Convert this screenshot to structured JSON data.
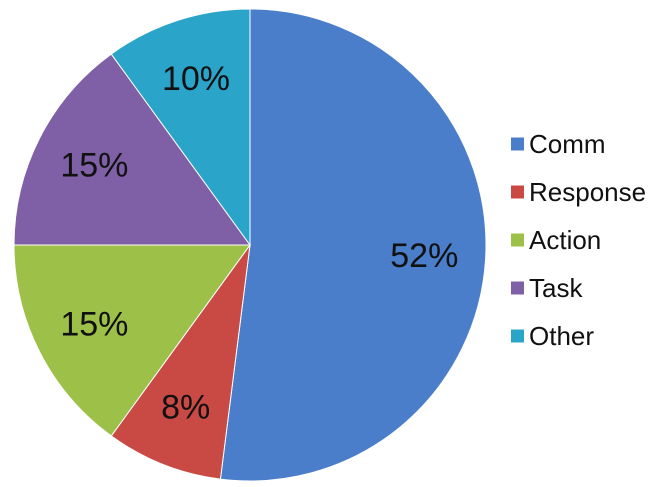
{
  "chart_data": {
    "type": "pie",
    "title": "",
    "slices": [
      {
        "name": "Comm",
        "value": 52,
        "label": "52%",
        "color": "#4a7ecb"
      },
      {
        "name": "Response",
        "value": 8,
        "label": "8%",
        "color": "#c94a45"
      },
      {
        "name": "Action",
        "value": 15,
        "label": "15%",
        "color": "#9dc049"
      },
      {
        "name": "Task",
        "value": 15,
        "label": "15%",
        "color": "#7f5fa6"
      },
      {
        "name": "Other",
        "value": 10,
        "label": "10%",
        "color": "#2aa4c9"
      }
    ],
    "start_angle_deg": 0,
    "direction": "clockwise",
    "legend_position": "right"
  }
}
